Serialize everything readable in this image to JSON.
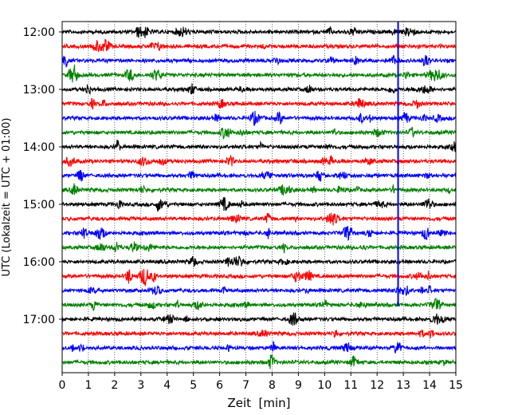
{
  "chart_data": {
    "type": "line",
    "xlabel": "Zeit  [min]",
    "ylabel": "UTC (Lokalzeit = UTC + 01:00)",
    "xlim": [
      0,
      15
    ],
    "x_ticks": [
      0,
      1,
      2,
      3,
      4,
      5,
      6,
      7,
      8,
      9,
      10,
      11,
      12,
      13,
      14,
      15
    ],
    "y_ticks": [
      "12:00",
      "13:00",
      "14:00",
      "15:00",
      "16:00",
      "17:00"
    ],
    "grid": "vertical dotted",
    "colors": [
      "#000000",
      "#ff0000",
      "#0000ff",
      "#008000"
    ],
    "traces": [
      {
        "start": "12:00",
        "color": "#000000"
      },
      {
        "start": "12:15",
        "color": "#ff0000"
      },
      {
        "start": "12:30",
        "color": "#0000ff"
      },
      {
        "start": "12:45",
        "color": "#008000"
      },
      {
        "start": "13:00",
        "color": "#000000"
      },
      {
        "start": "13:15",
        "color": "#ff0000"
      },
      {
        "start": "13:30",
        "color": "#0000ff"
      },
      {
        "start": "13:45",
        "color": "#008000"
      },
      {
        "start": "14:00",
        "color": "#000000"
      },
      {
        "start": "14:15",
        "color": "#ff0000"
      },
      {
        "start": "14:30",
        "color": "#0000ff"
      },
      {
        "start": "14:45",
        "color": "#008000"
      },
      {
        "start": "15:00",
        "color": "#000000"
      },
      {
        "start": "15:15",
        "color": "#ff0000"
      },
      {
        "start": "15:30",
        "color": "#0000ff"
      },
      {
        "start": "15:45",
        "color": "#008000"
      },
      {
        "start": "16:00",
        "color": "#000000"
      },
      {
        "start": "16:15",
        "color": "#ff0000"
      },
      {
        "start": "16:30",
        "color": "#0000ff"
      },
      {
        "start": "16:45",
        "color": "#008000"
      },
      {
        "start": "17:00",
        "color": "#000000"
      },
      {
        "start": "17:15",
        "color": "#ff0000"
      },
      {
        "start": "17:30",
        "color": "#0000ff"
      },
      {
        "start": "17:45",
        "color": "#008000"
      }
    ],
    "event_marker": {
      "x": 12.8,
      "color": "#0000ff",
      "from": "12:00",
      "to": "17:00"
    }
  }
}
